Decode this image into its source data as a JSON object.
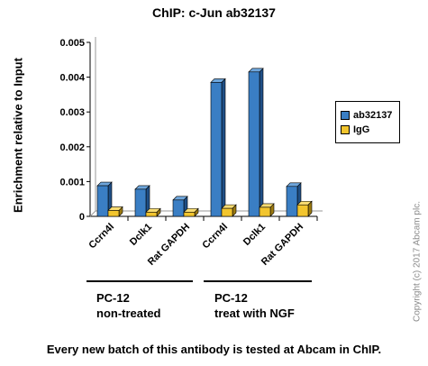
{
  "chart_data": {
    "type": "bar",
    "title": "ChIP: c-Jun  ab32137",
    "ylabel": "Enrichment relative to Input",
    "xlabel": "",
    "ylim": [
      0,
      0.005
    ],
    "yticks": [
      "0",
      "0.001",
      "0.002",
      "0.003",
      "0.004",
      "0.005"
    ],
    "yticks_values": [
      0,
      0.001,
      0.002,
      0.003,
      0.004,
      0.005
    ],
    "categories": [
      "Ccrn4l",
      "Dclk1",
      "Rat GAPDH",
      "Ccrn4l",
      "Dclk1",
      "Rat GAPDH"
    ],
    "series": [
      {
        "name": "ab32137",
        "color": "#3a7ec4",
        "values": [
          0.00088,
          0.00078,
          0.00047,
          0.00385,
          0.00415,
          0.00086
        ]
      },
      {
        "name": "IgG",
        "color": "#f2c52e",
        "values": [
          0.00017,
          0.00012,
          0.00012,
          0.00023,
          0.00026,
          0.00033
        ]
      }
    ],
    "legend_position": "right",
    "grid": false,
    "groups": [
      {
        "line1": "PC-12",
        "line2": "non-treated"
      },
      {
        "line1": "PC-12",
        "line2": "treat with NGF"
      }
    ]
  },
  "footer": "Every new batch of this antibody is tested at Abcam in ChIP.",
  "watermark": "Copyright (c) 2017 Abcam plc."
}
